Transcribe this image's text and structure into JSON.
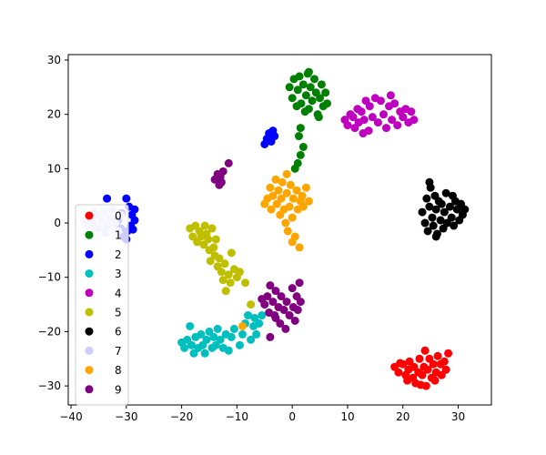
{
  "chart_data": {
    "type": "scatter",
    "title": "",
    "xlabel": "",
    "ylabel": "",
    "xlim": [
      -40.5,
      36
    ],
    "ylim": [
      -33.5,
      31
    ],
    "xticks": [
      -40,
      -30,
      -20,
      -10,
      0,
      10,
      20,
      30
    ],
    "yticks": [
      -30,
      -20,
      -10,
      0,
      10,
      20,
      30
    ],
    "grid": false,
    "legend_position": "lower-left",
    "series": [
      {
        "name": "0",
        "color": "#ff0000",
        "points": [
          [
            18.5,
            -26.5
          ],
          [
            19.2,
            -27.5
          ],
          [
            20.0,
            -26.0
          ],
          [
            20.5,
            -28.0
          ],
          [
            21.0,
            -27.0
          ],
          [
            21.2,
            -25.5
          ],
          [
            21.8,
            -28.5
          ],
          [
            22.0,
            -26.5
          ],
          [
            22.3,
            -29.5
          ],
          [
            22.8,
            -27.5
          ],
          [
            23.0,
            -25.0
          ],
          [
            23.5,
            -28.0
          ],
          [
            23.8,
            -26.5
          ],
          [
            24.2,
            -30.0
          ],
          [
            24.5,
            -27.0
          ],
          [
            24.8,
            -25.0
          ],
          [
            25.2,
            -28.5
          ],
          [
            25.5,
            -26.0
          ],
          [
            26.0,
            -27.5
          ],
          [
            26.3,
            -24.5
          ],
          [
            26.8,
            -26.0
          ],
          [
            27.0,
            -28.0
          ],
          [
            27.5,
            -25.5
          ],
          [
            27.8,
            -27.0
          ],
          [
            28.2,
            -24.0
          ],
          [
            19.5,
            -25.8
          ],
          [
            20.8,
            -29.0
          ],
          [
            23.2,
            -29.8
          ],
          [
            24.0,
            -23.5
          ],
          [
            25.8,
            -29.0
          ]
        ]
      },
      {
        "name": "1",
        "color": "#008000",
        "points": [
          [
            -0.5,
            25.0
          ],
          [
            0.0,
            23.0
          ],
          [
            0.3,
            26.5
          ],
          [
            0.8,
            21.5
          ],
          [
            1.0,
            24.5
          ],
          [
            1.3,
            27.0
          ],
          [
            1.6,
            22.0
          ],
          [
            2.0,
            25.5
          ],
          [
            2.3,
            20.5
          ],
          [
            2.5,
            23.5
          ],
          [
            2.8,
            27.5
          ],
          [
            3.0,
            21.0
          ],
          [
            3.3,
            25.0
          ],
          [
            3.6,
            22.5
          ],
          [
            4.0,
            26.5
          ],
          [
            4.3,
            24.0
          ],
          [
            4.6,
            20.0
          ],
          [
            5.0,
            23.0
          ],
          [
            5.3,
            25.5
          ],
          [
            5.6,
            21.5
          ],
          [
            6.0,
            24.0
          ],
          [
            6.3,
            22.0
          ],
          [
            1.5,
            17.5
          ],
          [
            1.2,
            16.0
          ],
          [
            2.0,
            14.0
          ],
          [
            1.5,
            12.5
          ],
          [
            1.0,
            11.0
          ],
          [
            0.5,
            10.0
          ],
          [
            3.0,
            27.8
          ],
          [
            4.8,
            19.5
          ]
        ]
      },
      {
        "name": "2",
        "color": "#0000ff",
        "points": [
          [
            -5.0,
            14.5
          ],
          [
            -4.6,
            15.5
          ],
          [
            -4.2,
            16.5
          ],
          [
            -3.8,
            15.0
          ],
          [
            -3.5,
            17.0
          ],
          [
            -3.2,
            16.0
          ],
          [
            -33.5,
            4.5
          ],
          [
            -30.0,
            4.5
          ],
          [
            -29.5,
            3.0
          ],
          [
            -29.0,
            1.5
          ],
          [
            -28.5,
            2.5
          ],
          [
            -28.5,
            0.5
          ],
          [
            -29.2,
            -0.5
          ],
          [
            -29.8,
            -1.5
          ],
          [
            -30.5,
            -2.5
          ],
          [
            -30.0,
            -3.0
          ],
          [
            -31.0,
            -1.0
          ],
          [
            -31.5,
            0.5
          ],
          [
            -30.8,
            1.8
          ],
          [
            -28.8,
            -1.2
          ]
        ]
      },
      {
        "name": "3",
        "color": "#00bfbf",
        "points": [
          [
            -20.0,
            -22.0
          ],
          [
            -19.5,
            -23.0
          ],
          [
            -19.0,
            -21.5
          ],
          [
            -18.5,
            -19.0
          ],
          [
            -18.2,
            -22.5
          ],
          [
            -17.8,
            -24.0
          ],
          [
            -17.5,
            -21.0
          ],
          [
            -17.0,
            -23.0
          ],
          [
            -16.5,
            -20.5
          ],
          [
            -16.2,
            -22.5
          ],
          [
            -15.8,
            -24.0
          ],
          [
            -15.5,
            -21.5
          ],
          [
            -15.0,
            -20.0
          ],
          [
            -14.5,
            -23.0
          ],
          [
            -14.2,
            -21.0
          ],
          [
            -13.8,
            -22.5
          ],
          [
            -13.5,
            -19.5
          ],
          [
            -13.0,
            -21.5
          ],
          [
            -12.5,
            -23.0
          ],
          [
            -12.0,
            -20.5
          ],
          [
            -11.5,
            -23.5
          ],
          [
            -11.0,
            -21.0
          ],
          [
            -10.5,
            -19.5
          ],
          [
            -9.5,
            -22.5
          ],
          [
            -9.0,
            -20.5
          ],
          [
            -8.5,
            -18.5
          ],
          [
            -8.0,
            -17.0
          ],
          [
            -7.5,
            -21.5
          ],
          [
            -7.0,
            -19.0
          ],
          [
            -6.5,
            -20.5
          ],
          [
            -6.0,
            -18.5
          ],
          [
            -5.5,
            -17.0
          ],
          [
            -6.8,
            -17.5
          ]
        ]
      },
      {
        "name": "4",
        "color": "#bf00bf",
        "points": [
          [
            9.5,
            19.0
          ],
          [
            10.0,
            18.0
          ],
          [
            10.5,
            20.0
          ],
          [
            11.0,
            19.5
          ],
          [
            11.3,
            17.5
          ],
          [
            11.8,
            21.0
          ],
          [
            12.0,
            18.5
          ],
          [
            12.5,
            20.5
          ],
          [
            13.0,
            19.0
          ],
          [
            13.3,
            22.5
          ],
          [
            13.8,
            17.0
          ],
          [
            14.0,
            21.5
          ],
          [
            14.5,
            19.5
          ],
          [
            15.0,
            23.0
          ],
          [
            15.5,
            18.5
          ],
          [
            16.0,
            22.5
          ],
          [
            16.5,
            20.0
          ],
          [
            17.0,
            17.5
          ],
          [
            17.5,
            21.5
          ],
          [
            18.0,
            19.0
          ],
          [
            18.5,
            22.0
          ],
          [
            19.0,
            18.0
          ],
          [
            19.5,
            20.5
          ],
          [
            20.0,
            19.5
          ],
          [
            20.5,
            21.0
          ],
          [
            21.0,
            18.5
          ],
          [
            21.5,
            20.5
          ],
          [
            22.0,
            19.0
          ],
          [
            17.8,
            23.5
          ],
          [
            12.8,
            16.5
          ]
        ]
      },
      {
        "name": "5",
        "color": "#bfbf00",
        "points": [
          [
            -18.5,
            -1.0
          ],
          [
            -18.0,
            -2.5
          ],
          [
            -17.5,
            -0.5
          ],
          [
            -17.2,
            -3.5
          ],
          [
            -16.8,
            -1.5
          ],
          [
            -16.5,
            -2.5
          ],
          [
            -16.0,
            -4.0
          ],
          [
            -15.8,
            -0.5
          ],
          [
            -15.5,
            -2.0
          ],
          [
            -15.2,
            -3.0
          ],
          [
            -15.0,
            -5.0
          ],
          [
            -14.8,
            -7.0
          ],
          [
            -14.5,
            -1.0
          ],
          [
            -14.2,
            -4.5
          ],
          [
            -14.0,
            -6.0
          ],
          [
            -13.5,
            -8.0
          ],
          [
            -13.2,
            -6.5
          ],
          [
            -12.8,
            -9.0
          ],
          [
            -12.5,
            -10.5
          ],
          [
            -12.2,
            -7.5
          ],
          [
            -12.0,
            -12.5
          ],
          [
            -11.5,
            -9.5
          ],
          [
            -11.2,
            -11.0
          ],
          [
            -11.0,
            -5.5
          ],
          [
            -10.5,
            -8.5
          ],
          [
            -10.0,
            -10.0
          ],
          [
            -9.5,
            -9.0
          ],
          [
            -8.5,
            -11.0
          ],
          [
            -7.5,
            -15.0
          ],
          [
            -13.8,
            -3.0
          ]
        ]
      },
      {
        "name": "6",
        "color": "#000000",
        "points": [
          [
            23.5,
            2.0
          ],
          [
            24.0,
            0.0
          ],
          [
            24.3,
            4.5
          ],
          [
            24.5,
            -1.5
          ],
          [
            24.8,
            3.0
          ],
          [
            25.0,
            6.5
          ],
          [
            25.3,
            1.0
          ],
          [
            25.5,
            -0.5
          ],
          [
            25.8,
            5.0
          ],
          [
            26.0,
            2.5
          ],
          [
            26.2,
            -2.0
          ],
          [
            26.5,
            4.0
          ],
          [
            26.8,
            0.5
          ],
          [
            27.0,
            3.5
          ],
          [
            27.3,
            -1.0
          ],
          [
            27.5,
            2.0
          ],
          [
            27.8,
            5.5
          ],
          [
            28.0,
            0.0
          ],
          [
            28.5,
            3.0
          ],
          [
            28.8,
            1.0
          ],
          [
            29.2,
            -0.5
          ],
          [
            29.5,
            4.0
          ],
          [
            29.8,
            2.5
          ],
          [
            30.2,
            0.5
          ],
          [
            30.5,
            3.5
          ],
          [
            30.8,
            1.5
          ],
          [
            31.2,
            2.5
          ],
          [
            29.0,
            5.0
          ],
          [
            24.8,
            7.5
          ],
          [
            26.0,
            -2.5
          ]
        ]
      },
      {
        "name": "7",
        "color": "#ccccff",
        "points": [
          [
            -37.5,
            0.5
          ],
          [
            -37.0,
            -0.5
          ],
          [
            -36.5,
            1.0
          ],
          [
            -36.0,
            0.0
          ],
          [
            -35.5,
            1.5
          ],
          [
            -35.0,
            -1.0
          ],
          [
            -34.5,
            0.5
          ],
          [
            -34.0,
            2.0
          ],
          [
            -33.5,
            -0.5
          ],
          [
            -33.0,
            1.0
          ],
          [
            -32.5,
            2.5
          ],
          [
            -32.0,
            0.0
          ],
          [
            -31.5,
            -1.5
          ],
          [
            -31.0,
            1.5
          ],
          [
            -35.8,
            2.0
          ],
          [
            -33.8,
            -1.8
          ]
        ]
      },
      {
        "name": "8",
        "color": "#ffa500",
        "points": [
          [
            -5.0,
            3.5
          ],
          [
            -4.5,
            4.5
          ],
          [
            -4.0,
            6.5
          ],
          [
            -3.8,
            2.5
          ],
          [
            -3.5,
            5.0
          ],
          [
            -3.0,
            8.0
          ],
          [
            -2.8,
            3.5
          ],
          [
            -2.5,
            6.0
          ],
          [
            -2.2,
            1.5
          ],
          [
            -2.0,
            4.5
          ],
          [
            -1.8,
            7.5
          ],
          [
            -1.5,
            2.5
          ],
          [
            -1.2,
            0.0
          ],
          [
            -1.0,
            5.5
          ],
          [
            -0.8,
            -1.5
          ],
          [
            -0.5,
            3.0
          ],
          [
            -0.3,
            7.0
          ],
          [
            0.0,
            1.0
          ],
          [
            0.2,
            4.5
          ],
          [
            0.5,
            -2.5
          ],
          [
            0.8,
            6.0
          ],
          [
            1.0,
            2.5
          ],
          [
            1.3,
            -4.5
          ],
          [
            1.5,
            4.0
          ],
          [
            1.8,
            5.0
          ],
          [
            2.0,
            3.0
          ],
          [
            2.5,
            6.5
          ],
          [
            3.0,
            4.0
          ],
          [
            -1.0,
            9.0
          ],
          [
            0.0,
            -3.5
          ],
          [
            -9.0,
            -19.0
          ]
        ]
      },
      {
        "name": "9",
        "color": "#800080",
        "points": [
          [
            -14.0,
            8.0
          ],
          [
            -13.5,
            9.0
          ],
          [
            -13.2,
            7.0
          ],
          [
            -13.0,
            8.5
          ],
          [
            -12.8,
            7.5
          ],
          [
            -12.5,
            9.5
          ],
          [
            -11.5,
            11.0
          ],
          [
            -5.5,
            -14.0
          ],
          [
            -5.0,
            -15.0
          ],
          [
            -4.5,
            -13.5
          ],
          [
            -4.2,
            -16.5
          ],
          [
            -4.0,
            -11.5
          ],
          [
            -3.5,
            -14.5
          ],
          [
            -3.2,
            -17.0
          ],
          [
            -3.0,
            -12.5
          ],
          [
            -2.5,
            -15.5
          ],
          [
            -2.2,
            -18.5
          ],
          [
            -2.0,
            -13.5
          ],
          [
            -1.5,
            -16.0
          ],
          [
            -1.2,
            -19.5
          ],
          [
            -1.0,
            -14.5
          ],
          [
            -0.5,
            -17.0
          ],
          [
            0.0,
            -12.0
          ],
          [
            0.2,
            -15.5
          ],
          [
            0.5,
            -18.0
          ],
          [
            0.8,
            -13.5
          ],
          [
            1.0,
            -16.0
          ],
          [
            1.3,
            -11.0
          ],
          [
            1.5,
            -14.5
          ],
          [
            -4.0,
            -21.0
          ],
          [
            -3.0,
            -17.5
          ]
        ]
      }
    ]
  }
}
